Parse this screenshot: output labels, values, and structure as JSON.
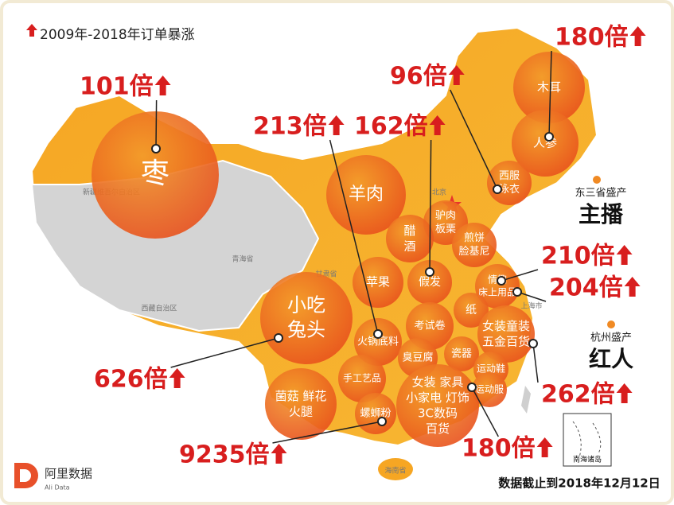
{
  "legend": "2009年-2018年订单暴涨",
  "provinces": [
    "新疆维吾尔自治区",
    "青海省",
    "西藏自治区",
    "甘肃省",
    "北京",
    "上海市",
    "海南省",
    "南海诸岛"
  ],
  "bubbles": [
    {
      "lines": [
        "枣"
      ]
    },
    {
      "lines": [
        "羊肉"
      ]
    },
    {
      "lines": [
        "木耳"
      ]
    },
    {
      "lines": [
        "人参"
      ]
    },
    {
      "lines": [
        "西服",
        "泳衣"
      ]
    },
    {
      "lines": [
        "驴肉",
        "板栗"
      ]
    },
    {
      "lines": [
        "醋",
        "酒"
      ]
    },
    {
      "lines": [
        "煎饼",
        "脸基尼"
      ]
    },
    {
      "lines": [
        "苹果"
      ]
    },
    {
      "lines": [
        "假发"
      ]
    },
    {
      "lines": [
        "情趣",
        "床上用品"
      ]
    },
    {
      "lines": [
        "纸"
      ]
    },
    {
      "lines": [
        "考试卷"
      ]
    },
    {
      "lines": [
        "女装童装",
        "五金百货"
      ]
    },
    {
      "lines": [
        "小吃",
        "兔头"
      ]
    },
    {
      "lines": [
        "火锅底料"
      ]
    },
    {
      "lines": [
        "臭豆腐"
      ]
    },
    {
      "lines": [
        "瓷器"
      ]
    },
    {
      "lines": [
        "运动鞋"
      ]
    },
    {
      "lines": [
        "运动服"
      ]
    },
    {
      "lines": [
        "手工艺品"
      ]
    },
    {
      "lines": [
        "菌菇 鲜花",
        "火腿"
      ]
    },
    {
      "lines": [
        "螺蛳粉"
      ]
    },
    {
      "lines": [
        "女装 家具",
        "小家电 灯饰",
        "3C数码",
        "百货"
      ]
    }
  ],
  "callouts": [
    "101倍",
    "213倍",
    "162倍",
    "96倍",
    "180倍",
    "210倍",
    "204倍",
    "262倍",
    "626倍",
    "9235倍",
    "180倍"
  ],
  "notes": [
    "东三省盛产",
    "主播",
    "杭州盛产",
    "红人"
  ],
  "footer": "数据截止到2018年12月12日",
  "logo": {
    "name": "阿里数据",
    "sub": "Ali Data"
  }
}
